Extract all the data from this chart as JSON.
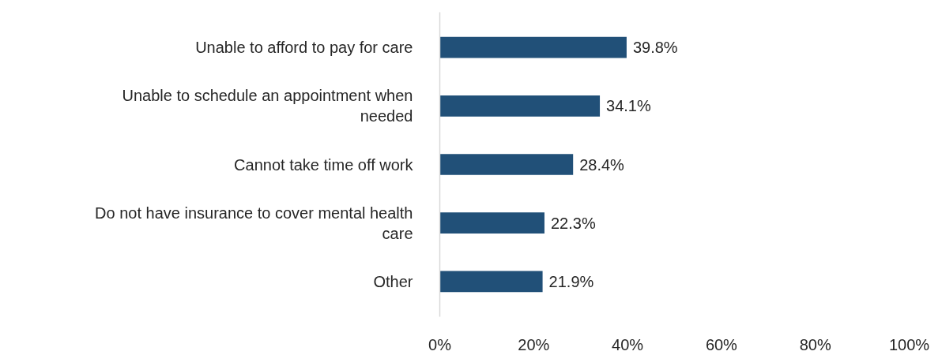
{
  "chart_data": {
    "type": "bar",
    "orientation": "horizontal",
    "categories": [
      "Unable to afford to pay for care",
      "Unable to schedule an appointment when needed",
      "Cannot take time off work",
      "Do not have insurance to cover mental health care",
      "Other"
    ],
    "values": [
      39.8,
      34.1,
      28.4,
      22.3,
      21.9
    ],
    "value_labels": [
      "39.8%",
      "34.1%",
      "28.4%",
      "22.3%",
      "21.9%"
    ],
    "color": "#215078",
    "xlim": [
      0,
      100
    ],
    "xticks": [
      {
        "value": 0,
        "label": "0%"
      },
      {
        "value": 20,
        "label": "20%"
      },
      {
        "value": 40,
        "label": "40%"
      },
      {
        "value": 60,
        "label": "60%"
      },
      {
        "value": 80,
        "label": "80%"
      },
      {
        "value": 100,
        "label": "100%"
      }
    ],
    "grid": false
  }
}
